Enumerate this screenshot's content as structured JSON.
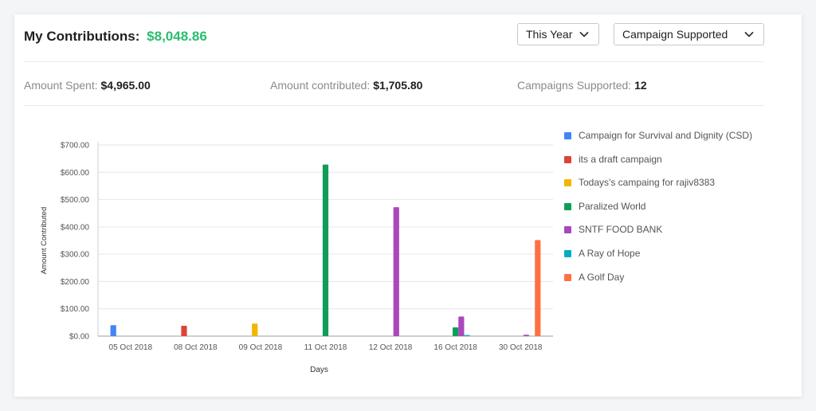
{
  "header": {
    "title_label": "My Contributions:",
    "total_amount": "$8,048.86",
    "period_dropdown": "This Year",
    "group_dropdown": "Campaign Supported"
  },
  "stats": {
    "spent_label": "Amount Spent:",
    "spent_value": "$4,965.00",
    "contributed_label": "Amount contributed:",
    "contributed_value": "$1,705.80",
    "campaigns_label": "Campaigns Supported:",
    "campaigns_value": "12"
  },
  "colors": {
    "accent_green": "#2bbd6e",
    "series": [
      "#4285f4",
      "#db4437",
      "#f4b400",
      "#0f9d58",
      "#ab47bc",
      "#00acc1",
      "#ff7043"
    ]
  },
  "chart_data": {
    "type": "bar",
    "xlabel": "Days",
    "ylabel": "Amount Contributed",
    "ylim": [
      0,
      700
    ],
    "yticks": [
      "$0.00",
      "$100.00",
      "$200.00",
      "$300.00",
      "$400.00",
      "$500.00",
      "$600.00",
      "$700.00"
    ],
    "grid": true,
    "legend_position": "right",
    "categories": [
      "05 Oct 2018",
      "08 Oct 2018",
      "09 Oct 2018",
      "11 Oct 2018",
      "12 Oct 2018",
      "16 Oct 2018",
      "30 Oct 2018"
    ],
    "series": [
      {
        "name": "Campaign for Survival and Dignity (CSD)",
        "values": [
          40,
          0,
          0,
          0,
          0,
          0,
          0
        ]
      },
      {
        "name": "its a draft campaign",
        "values": [
          0,
          38,
          0,
          0,
          0,
          0,
          0
        ]
      },
      {
        "name": "Todays's campaing for rajiv8383",
        "values": [
          0,
          0,
          46,
          0,
          0,
          0,
          0
        ]
      },
      {
        "name": "Paralized World",
        "values": [
          0,
          0,
          0,
          628,
          0,
          32,
          0
        ]
      },
      {
        "name": "SNTF FOOD BANK",
        "values": [
          0,
          0,
          0,
          0,
          472,
          72,
          5
        ]
      },
      {
        "name": "A Ray of Hope",
        "values": [
          0,
          0,
          0,
          0,
          0,
          4,
          0
        ]
      },
      {
        "name": "A Golf Day",
        "values": [
          0,
          0,
          0,
          0,
          0,
          0,
          352
        ]
      }
    ]
  }
}
